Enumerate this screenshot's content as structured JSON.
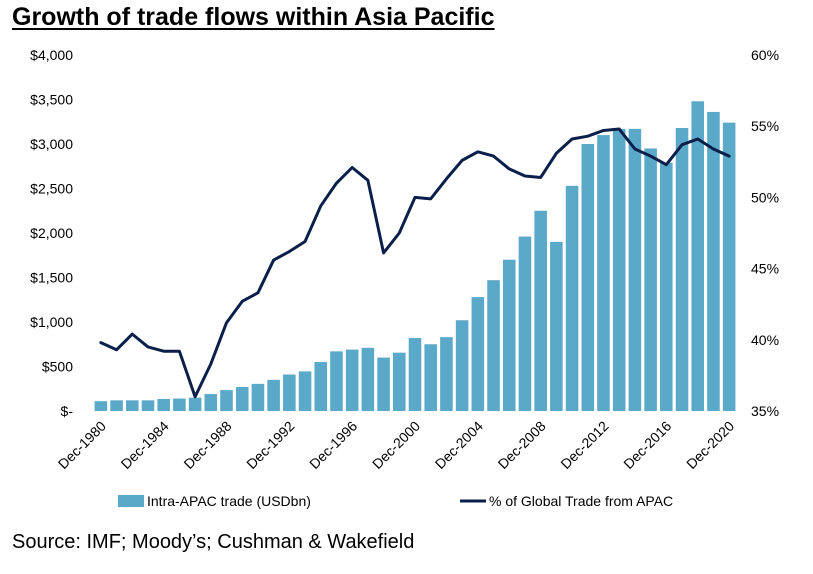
{
  "title": "Growth of trade flows within Asia Pacific",
  "source": "Source: IMF; Moody’s; Cushman & Wakefield",
  "chart_data": {
    "type": "bar+line",
    "x": [
      "Dec-1980",
      "Dec-1981",
      "Dec-1982",
      "Dec-1983",
      "Dec-1984",
      "Dec-1985",
      "Dec-1986",
      "Dec-1987",
      "Dec-1988",
      "Dec-1989",
      "Dec-1990",
      "Dec-1991",
      "Dec-1992",
      "Dec-1993",
      "Dec-1994",
      "Dec-1995",
      "Dec-1996",
      "Dec-1997",
      "Dec-1998",
      "Dec-1999",
      "Dec-2000",
      "Dec-2001",
      "Dec-2002",
      "Dec-2003",
      "Dec-2004",
      "Dec-2005",
      "Dec-2006",
      "Dec-2007",
      "Dec-2008",
      "Dec-2009",
      "Dec-2010",
      "Dec-2011",
      "Dec-2012",
      "Dec-2013",
      "Dec-2014",
      "Dec-2015",
      "Dec-2016",
      "Dec-2017",
      "Dec-2018",
      "Dec-2019",
      "Dec-2020"
    ],
    "x_tick_labels": [
      "Dec-1980",
      "Dec-1984",
      "Dec-1988",
      "Dec-1992",
      "Dec-1996",
      "Dec-2000",
      "Dec-2004",
      "Dec-2008",
      "Dec-2012",
      "Dec-2016",
      "Dec-2020"
    ],
    "series": [
      {
        "name": "Intra-APAC trade (USDbn)",
        "type": "bar",
        "axis": "left",
        "color": "#5ba9c9",
        "values": [
          110,
          120,
          120,
          120,
          135,
          140,
          150,
          190,
          235,
          270,
          305,
          350,
          410,
          445,
          550,
          670,
          690,
          710,
          600,
          655,
          820,
          750,
          830,
          1020,
          1280,
          1470,
          1700,
          1960,
          2250,
          1900,
          2530,
          3000,
          3100,
          3170,
          3170,
          2950,
          2790,
          3180,
          3480,
          3360,
          3240
        ]
      },
      {
        "name": "% of Global Trade from APAC",
        "type": "line",
        "axis": "right",
        "color": "#0b1f4b",
        "values": [
          39.8,
          39.3,
          40.4,
          39.5,
          39.2,
          39.2,
          36.0,
          38.3,
          41.2,
          42.7,
          43.3,
          45.6,
          46.2,
          46.9,
          49.4,
          51.0,
          52.1,
          51.2,
          46.1,
          47.5,
          50.0,
          49.9,
          51.3,
          52.6,
          53.2,
          52.9,
          52.0,
          51.5,
          51.4,
          53.1,
          54.1,
          54.3,
          54.7,
          54.8,
          53.4,
          52.9,
          52.3,
          53.7,
          54.1,
          53.4,
          52.9
        ]
      }
    ],
    "y_left": {
      "ticks": [
        "$-",
        "$500",
        "$1,000",
        "$1,500",
        "$2,000",
        "$2,500",
        "$3,000",
        "$3,500",
        "$4,000"
      ],
      "min": 0,
      "max": 4000
    },
    "y_right": {
      "ticks": [
        "35%",
        "40%",
        "45%",
        "50%",
        "55%",
        "60%"
      ],
      "min": 35,
      "max": 60
    },
    "grid": false,
    "legend_position": "bottom"
  }
}
